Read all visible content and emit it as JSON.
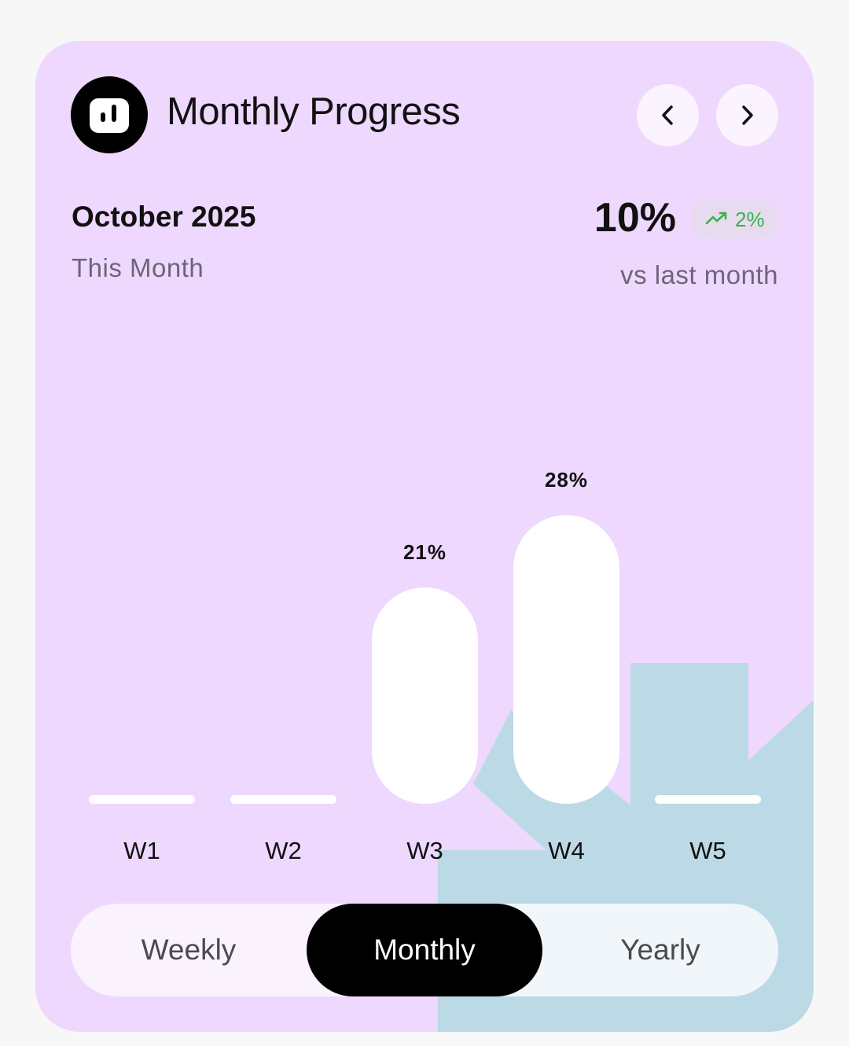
{
  "header": {
    "title": "Monthly Progress",
    "icon": "bar-chart-icon",
    "prev_icon": "chevron-left-icon",
    "next_icon": "chevron-right-icon"
  },
  "summary": {
    "period": "October 2025",
    "period_subtitle": "This Month",
    "percent": "10%",
    "change": "2%",
    "change_icon": "trending-up-icon",
    "change_color": "#3bb04c",
    "comparison": "vs last month"
  },
  "chart_data": {
    "type": "bar",
    "categories": [
      "W1",
      "W2",
      "W3",
      "W4",
      "W5"
    ],
    "values": [
      0,
      0,
      21,
      28,
      0
    ],
    "value_labels": [
      "",
      "",
      "21%",
      "28%",
      ""
    ],
    "bar_color": "#ffffff"
  },
  "tabs": {
    "items": [
      "Weekly",
      "Monthly",
      "Yearly"
    ],
    "selected": "Monthly"
  },
  "colors": {
    "card_background": "#eed8fd",
    "accent_shape": "#bcd9e6",
    "active_tab": "#000000"
  }
}
